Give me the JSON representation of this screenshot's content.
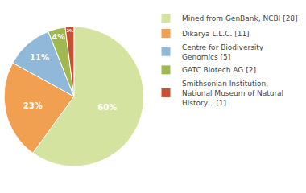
{
  "chart_data": {
    "type": "pie",
    "categories": [
      "Mined from GenBank, NCBI [28]",
      "Dikarya L.L.C. [11]",
      "Centre for Biodiversity\nGenomics [5]",
      "GATC Biotech AG [2]",
      "Smithsonian Institution,\nNational Museum of Natural\nHistory... [1]"
    ],
    "values": [
      60,
      23,
      11,
      4,
      2
    ],
    "value_labels": [
      "60%",
      "23%",
      "11%",
      "4%",
      "2%"
    ],
    "colors": [
      "#d4e4a0",
      "#f0a050",
      "#90b8d8",
      "#a0b850",
      "#c85030"
    ],
    "data_labels": true,
    "legend": "right"
  }
}
